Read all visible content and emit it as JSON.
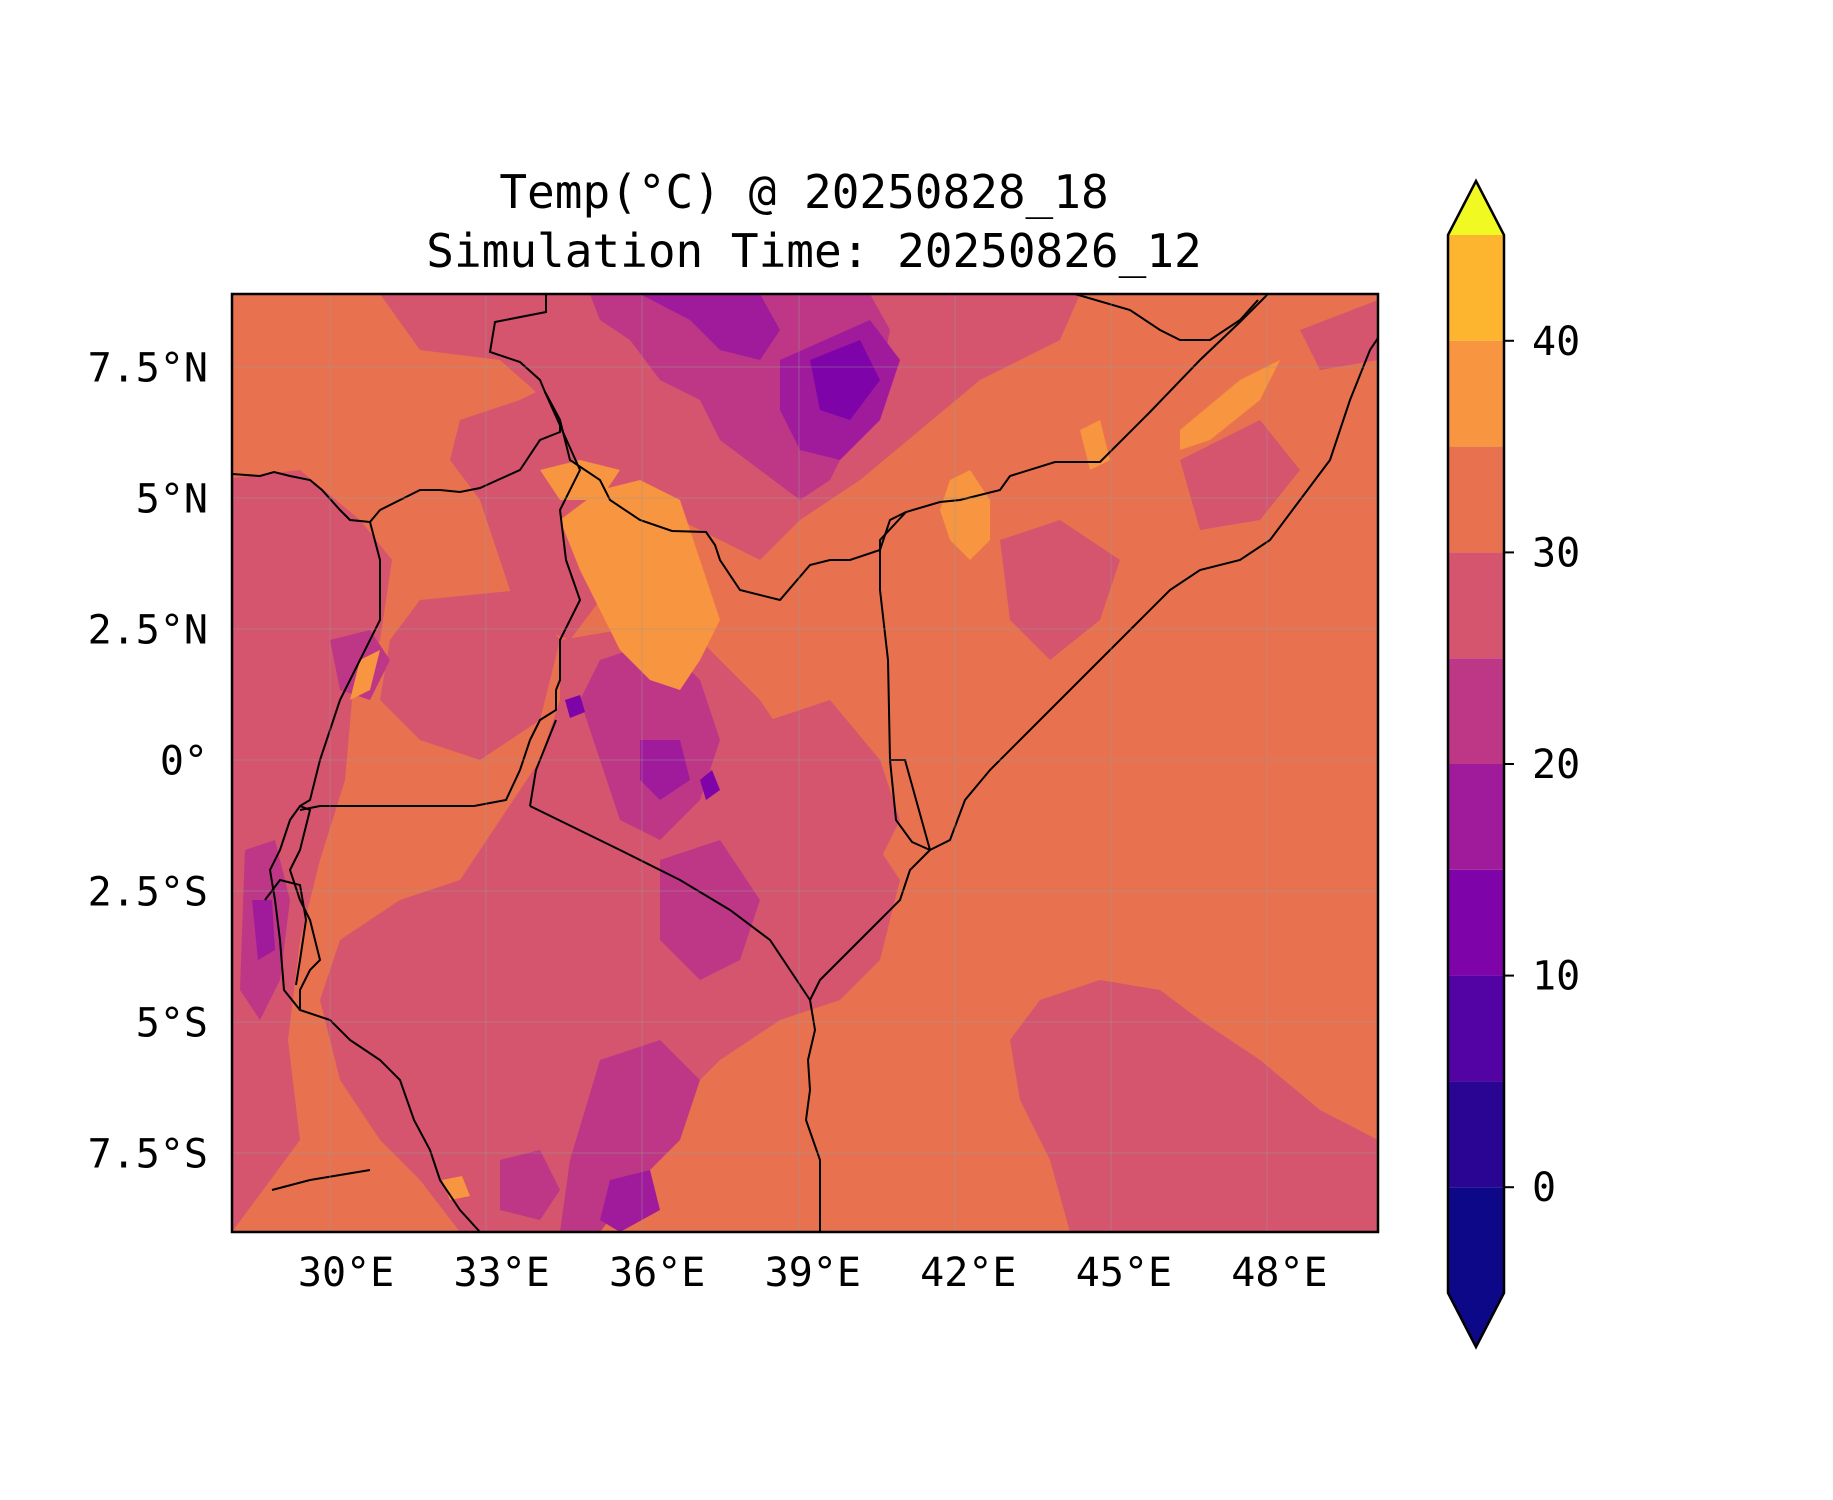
{
  "title": {
    "line1": "Temp(°C) @ 20250828_18",
    "line2": "Simulation Time: 20250826_12"
  },
  "map": {
    "lon_range": [
      27.8,
      49.9
    ],
    "lat_range": [
      -9.0,
      8.9
    ],
    "x_ticks": [
      {
        "value": 30,
        "label": "30°E"
      },
      {
        "value": 33,
        "label": "33°E"
      },
      {
        "value": 36,
        "label": "36°E"
      },
      {
        "value": 39,
        "label": "39°E"
      },
      {
        "value": 42,
        "label": "42°E"
      },
      {
        "value": 45,
        "label": "45°E"
      },
      {
        "value": 48,
        "label": "48°E"
      }
    ],
    "y_ticks": [
      {
        "value": 7.5,
        "label": "7.5°N"
      },
      {
        "value": 5,
        "label": "5°N"
      },
      {
        "value": 2.5,
        "label": "2.5°N"
      },
      {
        "value": 0,
        "label": "0°"
      },
      {
        "value": -2.5,
        "label": "2.5°S"
      },
      {
        "value": -5,
        "label": "5°S"
      },
      {
        "value": -7.5,
        "label": "7.5°S"
      }
    ],
    "gridlines": true
  },
  "colorbar": {
    "levels": [
      -5,
      0,
      5,
      10,
      15,
      20,
      25,
      30,
      35,
      40,
      45
    ],
    "colors": [
      "#0d0887",
      "#2a0593",
      "#5302a3",
      "#7e03a8",
      "#a01a9c",
      "#bd3786",
      "#d5546e",
      "#e8724f",
      "#f89540",
      "#fdb42f",
      "#f5e024"
    ],
    "under_color": "#0d0887",
    "over_color": "#f0f921",
    "extend": "both",
    "tick_labels": [
      {
        "value": 0,
        "label": "0"
      },
      {
        "value": 10,
        "label": "10"
      },
      {
        "value": 20,
        "label": "20"
      },
      {
        "value": 30,
        "label": "30"
      },
      {
        "value": 40,
        "label": "40"
      }
    ]
  }
}
